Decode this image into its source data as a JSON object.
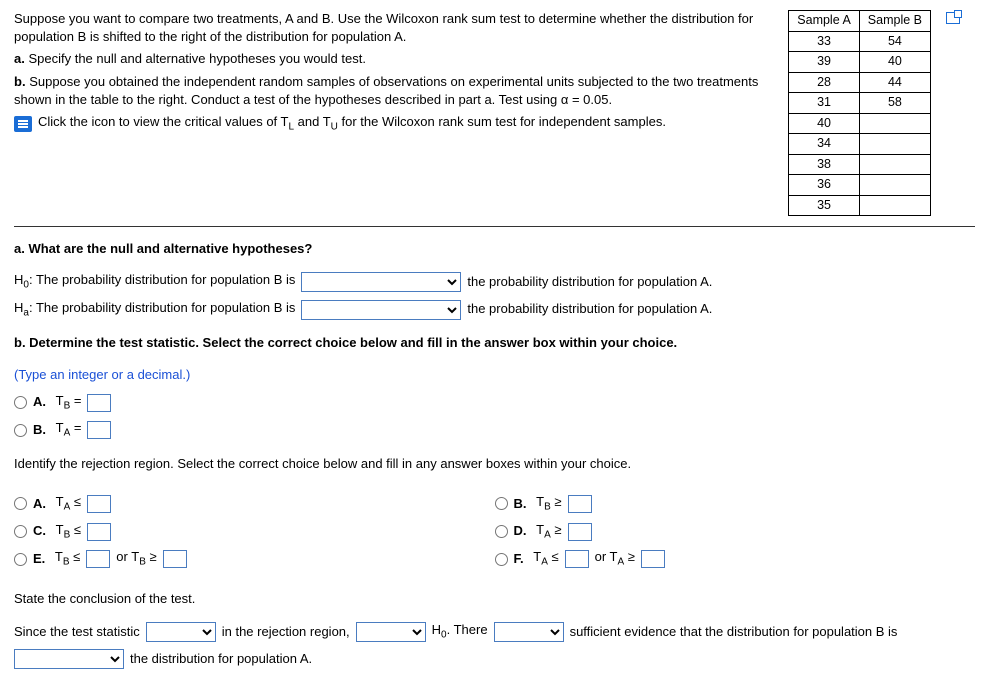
{
  "prompt": {
    "intro": "Suppose you want to compare two treatments, A and B. Use the Wilcoxon rank sum test to determine whether the distribution for population B is shifted to the right of the distribution for population A.",
    "part_a_label": "a.",
    "part_a_text": "Specify the null and alternative hypotheses you would test.",
    "part_b_label": "b.",
    "part_b_text": "Suppose you obtained the independent random samples of observations on experimental units subjected to the two treatments shown in the table to the right. Conduct a test of the hypotheses described in part a. Test using α = 0.05.",
    "link_text_1": "Click the icon to view the critical values of T",
    "link_text_sub1": "L",
    "link_text_2": " and T",
    "link_text_sub2": "U",
    "link_text_3": " for the Wilcoxon rank sum test for independent samples."
  },
  "table": {
    "head_a": "Sample A",
    "head_b": "Sample B",
    "rows": [
      [
        "33",
        "54"
      ],
      [
        "39",
        "40"
      ],
      [
        "28",
        "44"
      ],
      [
        "31",
        "58"
      ],
      [
        "40",
        ""
      ],
      [
        "34",
        ""
      ],
      [
        "38",
        ""
      ],
      [
        "36",
        ""
      ],
      [
        "35",
        ""
      ]
    ]
  },
  "qa": {
    "a_question": "a. What are the null and alternative hypotheses?",
    "h0_pre": "H",
    "h0_sub": "0",
    "h0_text1": ": The probability distribution for population B is",
    "h0_text2": "the probability distribution for population A.",
    "ha_pre": "H",
    "ha_sub": "a",
    "ha_text1": ": The probability distribution for population B is",
    "ha_text2": "the probability distribution for population A."
  },
  "qb": {
    "lead": "b. Determine the test statistic. Select the correct choice below and fill in the answer box within your choice.",
    "instr": "(Type an integer or a decimal.)",
    "optA_pre": "A.",
    "optA_sym_t": "T",
    "optA_sym_sub": "B",
    "optA_eq": " = ",
    "optB_pre": "B.",
    "optB_sym_t": "T",
    "optB_sym_sub": "A",
    "optB_eq": " = "
  },
  "rej": {
    "lead": "Identify the rejection region. Select the correct choice below and fill in any answer boxes within your choice.",
    "A_pre": "A.",
    "A_t": "T",
    "A_sub": "A",
    "A_op": " ≤ ",
    "B_pre": "B.",
    "B_t": "T",
    "B_sub": "B",
    "B_op": " ≥ ",
    "C_pre": "C.",
    "C_t": "T",
    "C_sub": "B",
    "C_op": " ≤ ",
    "D_pre": "D.",
    "D_t": "T",
    "D_sub": "A",
    "D_op": " ≥ ",
    "E_pre": "E.",
    "E_t": "T",
    "E_sub": "B",
    "E_op1": " ≤ ",
    "E_or": " or T",
    "E_sub2": "B",
    "E_op2": " ≥ ",
    "F_pre": "F.",
    "F_t": "T",
    "F_sub": "A",
    "F_op1": " ≤ ",
    "F_or": " or T",
    "F_sub2": "A",
    "F_op2": " ≥ "
  },
  "concl": {
    "lead": "State the conclusion of the test.",
    "t1": "Since the test statistic",
    "t2": "in the rejection region,",
    "t3_h": "H",
    "t3_sub": "0",
    "t3_rest": ". There",
    "t4": "sufficient evidence that the distribution for population B is",
    "t5": "the distribution for population A."
  }
}
